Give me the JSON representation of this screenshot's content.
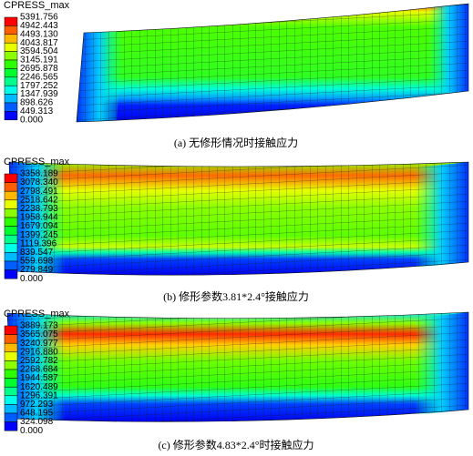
{
  "panels": [
    {
      "legend_title": "CPRESS_max",
      "legend_values": [
        "5391.756",
        "4942.443",
        "4493.130",
        "4043.817",
        "3594.504",
        "3145.191",
        "2695.878",
        "2246.565",
        "1797.252",
        "1347.939",
        "898.626",
        "449.313",
        "0.000"
      ],
      "caption": "(a) 无修形情况时接触应力"
    },
    {
      "legend_title": "CPRESS_max",
      "legend_values": [
        "3358.189",
        "3078.340",
        "2798.491",
        "2518.642",
        "2238.793",
        "1958.944",
        "1679.094",
        "1399.245",
        "1119.396",
        "839.547",
        "559.698",
        "279.849",
        "0.000"
      ],
      "caption": "(b) 修形参数3.81*2.4°接触应力"
    },
    {
      "legend_title": "CPRESS_max",
      "legend_values": [
        "3889.173",
        "3565.075",
        "3240.977",
        "2916.880",
        "2592.782",
        "2268.684",
        "1944.587",
        "1620.489",
        "1296.391",
        "972.293",
        "648.195",
        "324.098",
        "0.000"
      ],
      "caption": "(c) 修形参数4.83*2.4°时接触应力"
    }
  ]
}
